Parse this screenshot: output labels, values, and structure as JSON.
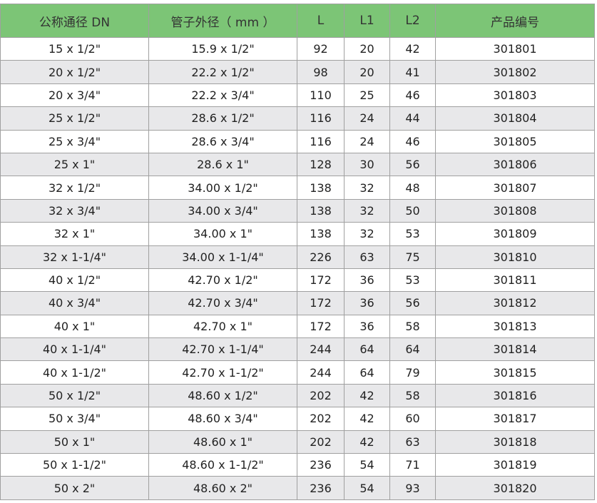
{
  "header_color": "#7cc576",
  "headers": [
    "公称通径 DN",
    "管子外径（ mm ）",
    "L",
    "L1",
    "L2",
    "产品编号"
  ],
  "rows": [
    [
      "15 x 1/2\"",
      "15.9 x 1/2\"",
      "92",
      "20",
      "42",
      "301801"
    ],
    [
      "20 x 1/2\"",
      "22.2 x 1/2\"",
      "98",
      "20",
      "41",
      "301802"
    ],
    [
      "20 x 3/4\"",
      "22.2 x 3/4\"",
      "110",
      "25",
      "46",
      "301803"
    ],
    [
      "25 x 1/2\"",
      "28.6 x 1/2\"",
      "116",
      "24",
      "44",
      "301804"
    ],
    [
      "25 x 3/4\"",
      "28.6 x 3/4\"",
      "116",
      "24",
      "46",
      "301805"
    ],
    [
      "25 x 1\"",
      "28.6 x 1\"",
      "128",
      "30",
      "56",
      "301806"
    ],
    [
      "32 x 1/2\"",
      "34.00 x 1/2\"",
      "138",
      "32",
      "48",
      "301807"
    ],
    [
      "32 x 3/4\"",
      "34.00 x 3/4\"",
      "138",
      "32",
      "50",
      "301808"
    ],
    [
      "32 x 1\"",
      "34.00 x 1\"",
      "138",
      "32",
      "53",
      "301809"
    ],
    [
      "32 x 1-1/4\"",
      "34.00 x 1-1/4\"",
      "226",
      "63",
      "75",
      "301810"
    ],
    [
      "40 x 1/2\"",
      "42.70 x 1/2\"",
      "172",
      "36",
      "53",
      "301811"
    ],
    [
      "40 x 3/4\"",
      "42.70 x 3/4\"",
      "172",
      "36",
      "56",
      "301812"
    ],
    [
      "40 x 1\"",
      "42.70 x 1\"",
      "172",
      "36",
      "58",
      "301813"
    ],
    [
      "40 x 1-1/4\"",
      "42.70 x 1-1/4\"",
      "244",
      "64",
      "64",
      "301814"
    ],
    [
      "40 x 1-1/2\"",
      "42.70 x 1-1/2\"",
      "244",
      "64",
      "79",
      "301815"
    ],
    [
      "50 x 1/2\"",
      "48.60 x 1/2\"",
      "202",
      "42",
      "58",
      "301816"
    ],
    [
      "50 x 3/4\"",
      "48.60 x 3/4\"",
      "202",
      "42",
      "60",
      "301817"
    ],
    [
      "50 x 1\"",
      "48.60 x 1\"",
      "202",
      "42",
      "63",
      "301818"
    ],
    [
      "50 x 1-1/2\"",
      "48.60 x 1-1/2\"",
      "236",
      "54",
      "71",
      "301819"
    ],
    [
      "50 x 2\"",
      "48.60 x 2\"",
      "236",
      "54",
      "93",
      "301820"
    ]
  ]
}
